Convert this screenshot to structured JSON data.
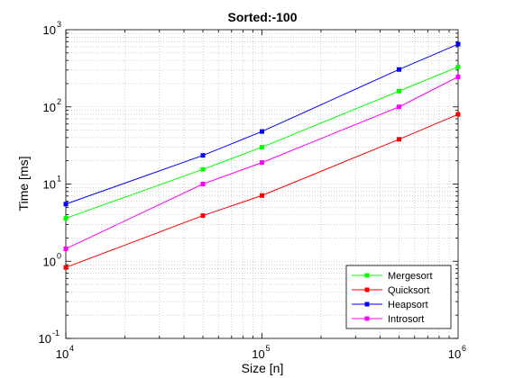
{
  "chart_data": {
    "type": "line",
    "title": "Sorted:-100",
    "xlabel": "Size [n]",
    "ylabel": "Time [ms]",
    "xscale": "log",
    "yscale": "log",
    "xlim": [
      10000,
      1000000
    ],
    "ylim": [
      0.1,
      1000
    ],
    "grid": true,
    "legend_position": "bottom-right",
    "x": [
      10000,
      50000,
      100000,
      500000,
      1000000
    ],
    "x_ticks": [
      {
        "base": "10",
        "exp": "4",
        "value": 10000
      },
      {
        "base": "10",
        "exp": "5",
        "value": 100000
      },
      {
        "base": "10",
        "exp": "6",
        "value": 1000000
      }
    ],
    "y_ticks": [
      {
        "base": "10",
        "exp": "-1",
        "value": 0.1
      },
      {
        "base": "10",
        "exp": "0",
        "value": 1
      },
      {
        "base": "10",
        "exp": "1",
        "value": 10
      },
      {
        "base": "10",
        "exp": "2",
        "value": 100
      },
      {
        "base": "10",
        "exp": "3",
        "value": 1000
      }
    ],
    "series": [
      {
        "name": "Mergesort",
        "color": "#00ff00",
        "values": [
          3.6,
          15.5,
          30,
          160,
          330
        ]
      },
      {
        "name": "Quicksort",
        "color": "#ff0000",
        "values": [
          0.83,
          3.9,
          7.1,
          38,
          80
        ]
      },
      {
        "name": "Heapsort",
        "color": "#0000ff",
        "values": [
          5.5,
          23.5,
          48,
          305,
          650
        ]
      },
      {
        "name": "Introsort",
        "color": "#ff00ff",
        "values": [
          1.45,
          10,
          19,
          100,
          245
        ]
      }
    ]
  }
}
